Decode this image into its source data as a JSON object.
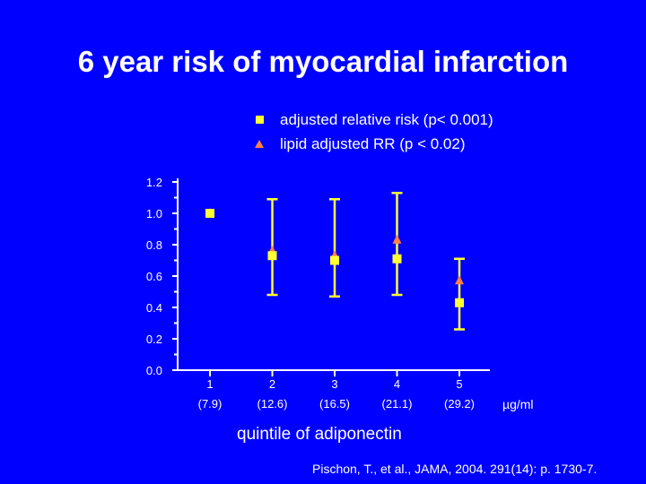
{
  "title": "6 year risk of myocardial infarction",
  "legend": {
    "items": [
      {
        "label": "adjusted relative risk (p< 0.001)",
        "marker": "square",
        "color": "#ffff33"
      },
      {
        "label": "lipid adjusted RR (p < 0.02)",
        "marker": "triangle",
        "color": "#ff8040"
      }
    ]
  },
  "unit_label": "µg/ml",
  "citation": "Pischon, T., et al., JAMA, 2004. 291(14): p. 1730-7.",
  "chart_data": {
    "type": "scatter",
    "title": "6 year risk of myocardial infarction",
    "xlabel": "quintile of adiponectin",
    "ylabel": "",
    "categories": [
      {
        "quintile": "1",
        "range": "(7.9)"
      },
      {
        "quintile": "2",
        "range": "(12.6)"
      },
      {
        "quintile": "3",
        "range": "(16.5)"
      },
      {
        "quintile": "4",
        "range": "(21.1)"
      },
      {
        "quintile": "5",
        "range": "(29.2)"
      }
    ],
    "ylim": [
      0.0,
      1.2
    ],
    "yticks": [
      "0.0",
      "0.2",
      "0.4",
      "0.6",
      "0.8",
      "1.0",
      "1.2"
    ],
    "series": [
      {
        "name": "adjusted relative risk (p< 0.001)",
        "marker": "square",
        "color": "#ffff33",
        "values": [
          1.0,
          0.73,
          0.7,
          0.71,
          0.43
        ],
        "ci_low": [
          null,
          0.48,
          0.47,
          0.48,
          0.26
        ],
        "ci_high": [
          null,
          1.09,
          1.09,
          1.13,
          0.71
        ]
      },
      {
        "name": "lipid adjusted RR (p < 0.02)",
        "marker": "triangle",
        "color": "#ff8040",
        "values": [
          1.0,
          0.76,
          0.73,
          0.83,
          0.57
        ]
      }
    ],
    "errorbar_color": "#ffff33",
    "grid": false,
    "legend_position": "top"
  }
}
